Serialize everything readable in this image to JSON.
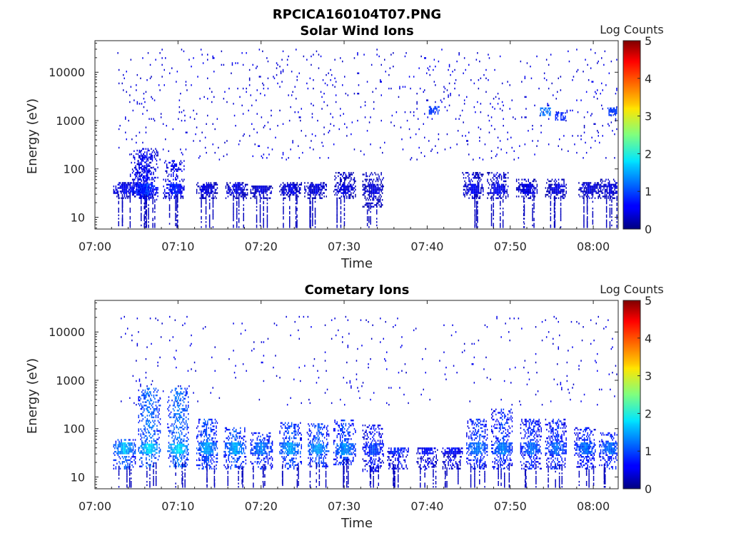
{
  "figure": {
    "title": "RPCICA160104T07.PNG"
  },
  "chart_data": [
    {
      "type": "heatmap",
      "title": "Solar Wind Ions",
      "xlabel": "Time",
      "ylabel": "Energy (eV)",
      "x_ticks": [
        "07:00",
        "07:10",
        "07:20",
        "07:30",
        "07:40",
        "07:50",
        "08:00"
      ],
      "xlim_minutes": [
        0,
        63
      ],
      "y_scale": "log",
      "ylim": [
        5.7,
        45000
      ],
      "y_ticks": [
        10,
        100,
        1000,
        10000
      ],
      "y_tick_labels": [
        "10",
        "100",
        "1000",
        "10000"
      ],
      "colorbar": {
        "label": "Log Counts",
        "range": [
          0,
          5
        ],
        "ticks": [
          "0",
          "1",
          "2",
          "3",
          "4",
          "5"
        ],
        "colormap": "jet"
      },
      "clusters": [
        {
          "t": 3.5,
          "emin": 30,
          "emax": 50,
          "level": 0.6
        },
        {
          "t": 5.5,
          "emin": 30,
          "emax": 200,
          "level": 0.9
        },
        {
          "t": 6.2,
          "emin": 28,
          "emax": 250,
          "level": 0.9
        },
        {
          "t": 9.5,
          "emin": 30,
          "emax": 150,
          "level": 0.8
        },
        {
          "t": 13.5,
          "emin": 30,
          "emax": 50,
          "level": 0.5
        },
        {
          "t": 17,
          "emin": 30,
          "emax": 50,
          "level": 0.5
        },
        {
          "t": 20,
          "emin": 30,
          "emax": 45,
          "level": 0.5
        },
        {
          "t": 23.5,
          "emin": 30,
          "emax": 50,
          "level": 0.5
        },
        {
          "t": 26.5,
          "emin": 30,
          "emax": 50,
          "level": 0.5
        },
        {
          "t": 30,
          "emin": 30,
          "emax": 80,
          "level": 0.5
        },
        {
          "t": 33.5,
          "emin": 20,
          "emax": 80,
          "level": 0.5
        },
        {
          "t": 45.5,
          "emin": 30,
          "emax": 80,
          "level": 0.6
        },
        {
          "t": 48.5,
          "emin": 30,
          "emax": 80,
          "level": 0.6
        },
        {
          "t": 52,
          "emin": 30,
          "emax": 60,
          "level": 0.5
        },
        {
          "t": 55.5,
          "emin": 30,
          "emax": 60,
          "level": 0.5
        },
        {
          "t": 59.5,
          "emin": 30,
          "emax": 50,
          "level": 0.5
        },
        {
          "t": 62,
          "emin": 30,
          "emax": 60,
          "level": 0.5
        }
      ],
      "hotspots": [
        {
          "t": 54.2,
          "e": 1500,
          "level": 1.2
        },
        {
          "t": 56,
          "e": 1200,
          "level": 0.8
        },
        {
          "t": 62.3,
          "e": 1500,
          "level": 0.9
        },
        {
          "t": 40.8,
          "e": 1600,
          "level": 0.9
        }
      ],
      "background": {
        "emin": 150,
        "emax": 30000,
        "density": 0.45
      }
    },
    {
      "type": "heatmap",
      "title": "Cometary Ions",
      "xlabel": "Time",
      "ylabel": "Energy (eV)",
      "x_ticks": [
        "07:00",
        "07:10",
        "07:20",
        "07:30",
        "07:40",
        "07:50",
        "08:00"
      ],
      "xlim_minutes": [
        0,
        63
      ],
      "y_scale": "log",
      "ylim": [
        5.7,
        45000
      ],
      "y_ticks": [
        10,
        100,
        1000,
        10000
      ],
      "y_tick_labels": [
        "10",
        "100",
        "1000",
        "10000"
      ],
      "colorbar": {
        "label": "Log Counts",
        "range": [
          0,
          5
        ],
        "ticks": [
          "0",
          "1",
          "2",
          "3",
          "4",
          "5"
        ],
        "colormap": "jet"
      },
      "clusters": [
        {
          "t": 3.5,
          "emin": 18,
          "emax": 60,
          "level": 1.6
        },
        {
          "t": 6.5,
          "emin": 20,
          "emax": 700,
          "level": 1.8
        },
        {
          "t": 10,
          "emin": 20,
          "emax": 700,
          "level": 1.8
        },
        {
          "t": 13.5,
          "emin": 18,
          "emax": 150,
          "level": 1.5
        },
        {
          "t": 16.8,
          "emin": 18,
          "emax": 100,
          "level": 1.5
        },
        {
          "t": 20,
          "emin": 18,
          "emax": 80,
          "level": 1.3
        },
        {
          "t": 23.5,
          "emin": 18,
          "emax": 130,
          "level": 1.5
        },
        {
          "t": 26.8,
          "emin": 20,
          "emax": 120,
          "level": 1.5
        },
        {
          "t": 30,
          "emin": 22,
          "emax": 150,
          "level": 1.4
        },
        {
          "t": 33.5,
          "emin": 16,
          "emax": 120,
          "level": 1.0
        },
        {
          "t": 36.5,
          "emin": 18,
          "emax": 40,
          "level": 0.9
        },
        {
          "t": 40,
          "emin": 18,
          "emax": 40,
          "level": 0.7
        },
        {
          "t": 43,
          "emin": 18,
          "emax": 40,
          "level": 0.7
        },
        {
          "t": 46,
          "emin": 18,
          "emax": 150,
          "level": 1.3
        },
        {
          "t": 49,
          "emin": 18,
          "emax": 250,
          "level": 1.3
        },
        {
          "t": 52.5,
          "emin": 18,
          "emax": 150,
          "level": 1.2
        },
        {
          "t": 55.5,
          "emin": 18,
          "emax": 150,
          "level": 1.2
        },
        {
          "t": 59,
          "emin": 18,
          "emax": 100,
          "level": 1.2
        },
        {
          "t": 62,
          "emin": 18,
          "emax": 80,
          "level": 1.2
        }
      ],
      "hotspots": [],
      "background": {
        "emin": 300,
        "emax": 20000,
        "density": 0.25
      }
    }
  ]
}
